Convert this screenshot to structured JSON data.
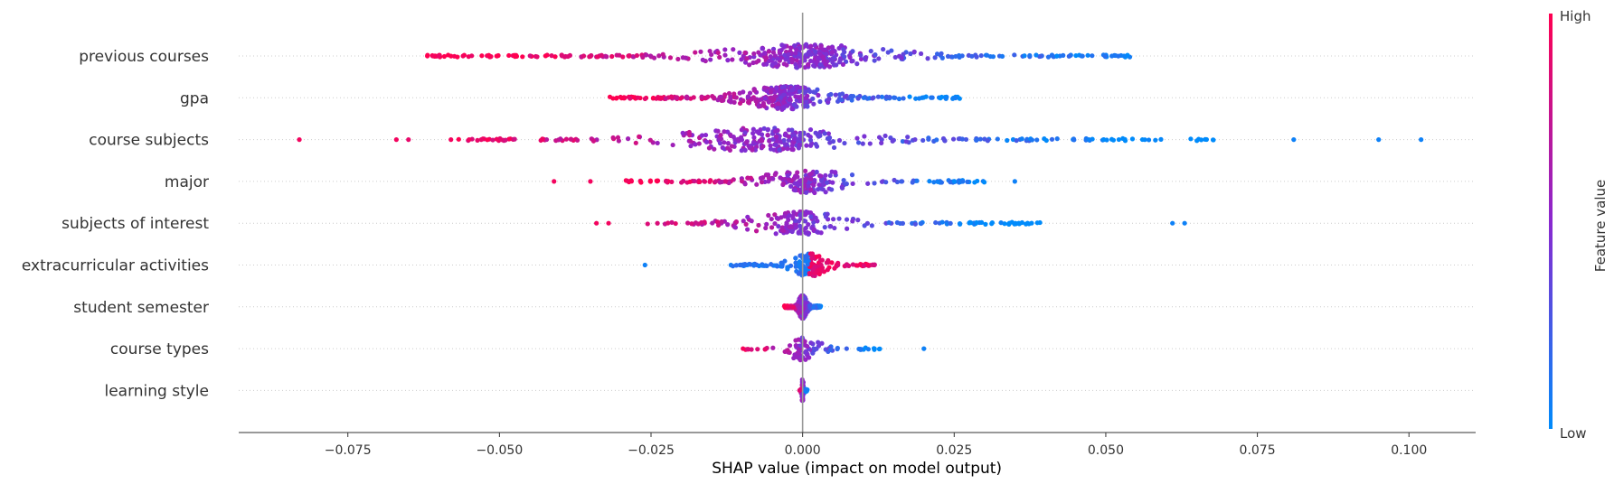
{
  "chart_data": {
    "type": "scatter",
    "subtype": "shap-beeswarm-summary",
    "xlabel": "SHAP value (impact on model output)",
    "xlim": [
      -0.093,
      0.111
    ],
    "x_ticks": [
      -0.075,
      -0.05,
      -0.025,
      0.0,
      0.025,
      0.05,
      0.075,
      0.1
    ],
    "x_tick_labels": [
      "−0.075",
      "−0.050",
      "−0.025",
      "0.000",
      "0.025",
      "0.050",
      "0.075",
      "0.100"
    ],
    "grid": false,
    "colorbar": {
      "title": "Feature value",
      "high_label": "High",
      "low_label": "Low",
      "high_color": "#ff0051",
      "low_color": "#008bfb",
      "mid_color": "#8a28cf"
    },
    "features": [
      {
        "name": "previous courses",
        "min": -0.062,
        "max": 0.054,
        "peak": 0.0,
        "n": 420,
        "outliers": [
          {
            "x": -0.061,
            "v": 0.95
          },
          {
            "x": -0.06,
            "v": 0.9
          },
          {
            "x": -0.056,
            "v": 0.95
          },
          {
            "x": 0.053,
            "v": 0.05
          },
          {
            "x": 0.051,
            "v": 0.1
          },
          {
            "x": 0.046,
            "v": 0.1
          }
        ]
      },
      {
        "name": "gpa",
        "min": -0.032,
        "max": 0.026,
        "peak": -0.003,
        "n": 340,
        "outliers": []
      },
      {
        "name": "course subjects",
        "min": -0.057,
        "max": 0.068,
        "peak": -0.006,
        "n": 330,
        "outliers": [
          {
            "x": -0.083,
            "v": 0.95
          },
          {
            "x": -0.067,
            "v": 0.95
          },
          {
            "x": -0.065,
            "v": 0.9
          },
          {
            "x": -0.058,
            "v": 0.95
          },
          {
            "x": -0.055,
            "v": 0.95
          },
          {
            "x": -0.053,
            "v": 0.9
          },
          {
            "x": 0.081,
            "v": 0.05
          },
          {
            "x": 0.095,
            "v": 0.05
          },
          {
            "x": 0.102,
            "v": 0.05
          }
        ]
      },
      {
        "name": "major",
        "min": -0.03,
        "max": 0.03,
        "peak": 0.001,
        "n": 230,
        "outliers": [
          {
            "x": -0.041,
            "v": 0.95
          },
          {
            "x": -0.035,
            "v": 0.95
          },
          {
            "x": 0.035,
            "v": 0.05
          }
        ]
      },
      {
        "name": "subjects of interest",
        "min": -0.026,
        "max": 0.04,
        "peak": -0.001,
        "n": 200,
        "outliers": [
          {
            "x": -0.034,
            "v": 0.95
          },
          {
            "x": -0.032,
            "v": 0.95
          },
          {
            "x": 0.061,
            "v": 0.05
          },
          {
            "x": 0.063,
            "v": 0.05
          }
        ]
      },
      {
        "name": "extracurricular activities",
        "min": -0.012,
        "max": 0.012,
        "peak": 0.001,
        "n": 170,
        "outliers": [
          {
            "x": -0.026,
            "v": 0.05
          }
        ]
      },
      {
        "name": "student semester",
        "min": -0.003,
        "max": 0.003,
        "peak": 0.0,
        "n": 320,
        "outliers": []
      },
      {
        "name": "course types",
        "min": -0.01,
        "max": 0.013,
        "peak": 0.0,
        "n": 90,
        "outliers": [
          {
            "x": 0.02,
            "v": 0.05
          }
        ]
      },
      {
        "name": "learning style",
        "min": -0.0005,
        "max": 0.0008,
        "peak": 0.0,
        "n": 60,
        "outliers": []
      }
    ]
  }
}
